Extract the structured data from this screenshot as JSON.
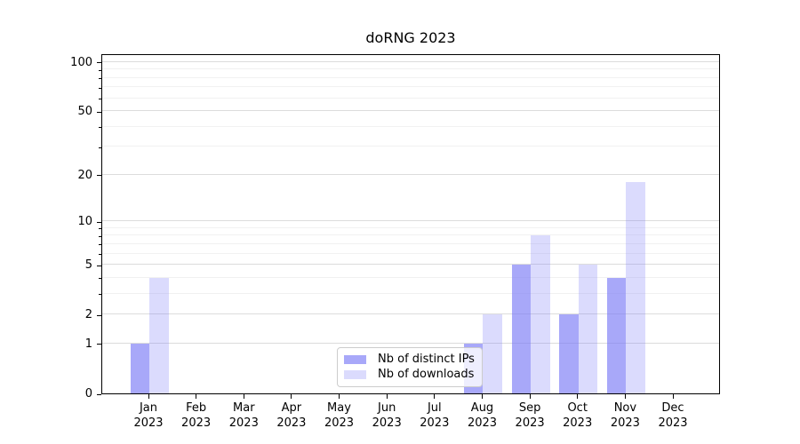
{
  "chart_data": {
    "type": "bar",
    "title": "doRNG 2023",
    "categories": [
      "Jan",
      "Feb",
      "Mar",
      "Apr",
      "May",
      "Jun",
      "Jul",
      "Aug",
      "Sep",
      "Oct",
      "Nov",
      "Dec"
    ],
    "x_year": "2023",
    "series": [
      {
        "name": "Nb of distinct IPs",
        "color": "rgba(122,122,246,0.65)",
        "values": [
          1,
          0,
          0,
          0,
          0,
          0,
          0,
          1,
          5,
          2,
          4,
          0
        ]
      },
      {
        "name": "Nb of downloads",
        "color": "rgba(122,122,246,0.27)",
        "values": [
          4,
          0,
          0,
          0,
          0,
          0,
          0,
          2,
          8,
          5,
          18,
          0
        ]
      }
    ],
    "yscale": "log1p",
    "ylim": [
      0,
      113
    ],
    "y_tick_values": [
      0,
      1,
      2,
      5,
      10,
      20,
      50,
      100
    ],
    "y_tick_labels": [
      "0",
      "1",
      "2",
      "5",
      "10",
      "20",
      "50",
      "100"
    ],
    "y_minor_ticks": [
      3,
      4,
      6,
      7,
      8,
      9,
      30,
      40,
      60,
      70,
      80,
      90
    ],
    "grid": "horizontal",
    "legend_position": "lower center"
  }
}
